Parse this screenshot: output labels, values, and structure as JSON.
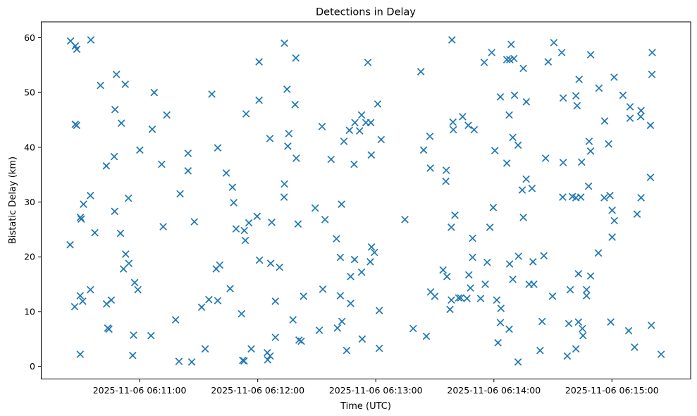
{
  "figure": {
    "background": "#ffffff"
  },
  "chart_data": {
    "type": "scatter",
    "title": "Detections in Delay",
    "xlabel": "Time (UTC)",
    "ylabel": "Bistatic Delay (km)",
    "marker": "x",
    "marker_color": "#1f77b4",
    "axis_color": "#000000",
    "grid": false,
    "legend": "none",
    "x_unit": "seconds after 2025-11-06 06:10:00 UTC",
    "xlim": [
      10,
      340
    ],
    "ylim": [
      -2.3,
      62.9
    ],
    "x_ticks": [
      {
        "sec": 60,
        "label": "2025-11-06 06:11:00"
      },
      {
        "sec": 120,
        "label": "2025-11-06 06:12:00"
      },
      {
        "sec": 180,
        "label": "2025-11-06 06:13:00"
      },
      {
        "sec": 240,
        "label": "2025-11-06 06:14:00"
      },
      {
        "sec": 300,
        "label": "2025-11-06 06:15:00"
      }
    ],
    "y_ticks": [
      0,
      10,
      20,
      30,
      40,
      50,
      60
    ],
    "points": [
      [
        24.9,
        59.4
      ],
      [
        27.3,
        58.5
      ],
      [
        28.1,
        57.9
      ],
      [
        35.2,
        59.6
      ],
      [
        48.2,
        53.3
      ],
      [
        40.1,
        51.3
      ],
      [
        52.7,
        51.5
      ],
      [
        67.4,
        50.0
      ],
      [
        96.7,
        49.7
      ],
      [
        47.5,
        46.9
      ],
      [
        73.8,
        45.9
      ],
      [
        114.1,
        46.1
      ],
      [
        27.3,
        44.2
      ],
      [
        28.0,
        44.0
      ],
      [
        50.7,
        44.4
      ],
      [
        66.4,
        43.3
      ],
      [
        60.1,
        39.5
      ],
      [
        99.7,
        39.9
      ],
      [
        47.1,
        38.3
      ],
      [
        84.6,
        38.9
      ],
      [
        43.1,
        36.6
      ],
      [
        71.2,
        36.9
      ],
      [
        84.6,
        35.7
      ],
      [
        104.0,
        35.3
      ],
      [
        107.2,
        32.7
      ],
      [
        35.0,
        31.2
      ],
      [
        80.6,
        31.5
      ],
      [
        133.6,
        59.0
      ],
      [
        139.4,
        56.3
      ],
      [
        120.7,
        55.6
      ],
      [
        176.0,
        55.5
      ],
      [
        202.9,
        53.8
      ],
      [
        218.7,
        59.6
      ],
      [
        134.9,
        50.6
      ],
      [
        120.7,
        48.6
      ],
      [
        139.0,
        47.8
      ],
      [
        181.0,
        47.9
      ],
      [
        172.8,
        45.9
      ],
      [
        169.4,
        44.5
      ],
      [
        175.0,
        44.5
      ],
      [
        177.5,
        44.5
      ],
      [
        166.6,
        43.1
      ],
      [
        171.8,
        43.0
      ],
      [
        152.7,
        43.8
      ],
      [
        182.7,
        41.4
      ],
      [
        163.8,
        41.1
      ],
      [
        126.2,
        41.6
      ],
      [
        135.8,
        42.5
      ],
      [
        135.3,
        40.2
      ],
      [
        207.5,
        42.0
      ],
      [
        204.3,
        39.5
      ],
      [
        219.2,
        44.6
      ],
      [
        224.1,
        45.6
      ],
      [
        227.0,
        44.0
      ],
      [
        219.4,
        43.2
      ],
      [
        139.6,
        38.0
      ],
      [
        157.3,
        37.8
      ],
      [
        169.0,
        36.9
      ],
      [
        177.7,
        38.6
      ],
      [
        207.7,
        36.2
      ],
      [
        215.8,
        35.8
      ],
      [
        215.6,
        33.8
      ],
      [
        133.6,
        33.3
      ],
      [
        133.4,
        30.9
      ],
      [
        248.8,
        58.8
      ],
      [
        270.5,
        59.1
      ],
      [
        238.9,
        57.3
      ],
      [
        235.1,
        55.5
      ],
      [
        246.6,
        56.0
      ],
      [
        248.1,
        56.0
      ],
      [
        250.2,
        56.2
      ],
      [
        255.0,
        54.4
      ],
      [
        267.6,
        55.6
      ],
      [
        274.5,
        57.3
      ],
      [
        289.2,
        56.9
      ],
      [
        320.5,
        57.3
      ],
      [
        320.3,
        53.3
      ],
      [
        283.3,
        52.4
      ],
      [
        301.1,
        52.8
      ],
      [
        293.4,
        50.8
      ],
      [
        243.3,
        49.2
      ],
      [
        250.5,
        49.5
      ],
      [
        256.5,
        48.3
      ],
      [
        275.2,
        49.0
      ],
      [
        281.7,
        49.4
      ],
      [
        305.6,
        49.5
      ],
      [
        282.3,
        47.6
      ],
      [
        247.8,
        45.9
      ],
      [
        296.3,
        44.8
      ],
      [
        309.2,
        47.4
      ],
      [
        314.8,
        46.7
      ],
      [
        309.2,
        45.3
      ],
      [
        314.6,
        45.6
      ],
      [
        319.6,
        44.0
      ],
      [
        230.0,
        43.2
      ],
      [
        249.6,
        41.8
      ],
      [
        252.3,
        40.4
      ],
      [
        240.5,
        39.4
      ],
      [
        288.4,
        41.1
      ],
      [
        298.3,
        40.6
      ],
      [
        289.2,
        39.3
      ],
      [
        246.6,
        37.1
      ],
      [
        266.3,
        38.0
      ],
      [
        275.2,
        37.2
      ],
      [
        284.6,
        37.3
      ],
      [
        319.6,
        34.5
      ],
      [
        256.4,
        34.2
      ],
      [
        254.4,
        32.2
      ],
      [
        259.4,
        32.5
      ],
      [
        288.1,
        32.9
      ],
      [
        275.0,
        30.9
      ],
      [
        279.9,
        31.0
      ],
      [
        281.7,
        30.8
      ],
      [
        284.2,
        30.9
      ],
      [
        296.1,
        30.8
      ],
      [
        299.0,
        31.2
      ],
      [
        314.8,
        30.8
      ],
      [
        31.5,
        29.6
      ],
      [
        54.3,
        30.7
      ],
      [
        47.3,
        28.3
      ],
      [
        29.9,
        27.2
      ],
      [
        30.3,
        26.9
      ],
      [
        107.8,
        29.9
      ],
      [
        87.8,
        26.4
      ],
      [
        72.0,
        25.5
      ],
      [
        119.7,
        27.4
      ],
      [
        115.5,
        26.2
      ],
      [
        109.0,
        25.1
      ],
      [
        113.2,
        24.8
      ],
      [
        113.7,
        23.0
      ],
      [
        24.7,
        22.2
      ],
      [
        37.2,
        24.4
      ],
      [
        50.3,
        24.3
      ],
      [
        52.9,
        20.5
      ],
      [
        54.5,
        18.8
      ],
      [
        51.8,
        17.8
      ],
      [
        98.9,
        17.8
      ],
      [
        100.7,
        18.5
      ],
      [
        57.5,
        15.3
      ],
      [
        59.1,
        14.0
      ],
      [
        35.0,
        14.0
      ],
      [
        29.8,
        12.9
      ],
      [
        31.1,
        11.9
      ],
      [
        27.0,
        10.9
      ],
      [
        43.2,
        11.4
      ],
      [
        45.6,
        12.1
      ],
      [
        106.0,
        14.2
      ],
      [
        95.2,
        12.2
      ],
      [
        99.7,
        12.0
      ],
      [
        91.5,
        10.8
      ],
      [
        111.8,
        9.6
      ],
      [
        78.3,
        8.5
      ],
      [
        43.8,
        7.0
      ],
      [
        44.4,
        6.8
      ],
      [
        56.9,
        5.7
      ],
      [
        65.8,
        5.6
      ],
      [
        29.8,
        2.2
      ],
      [
        56.5,
        2.0
      ],
      [
        80.0,
        0.9
      ],
      [
        86.5,
        0.8
      ],
      [
        93.3,
        3.2
      ],
      [
        116.7,
        3.2
      ],
      [
        112.4,
        1.1
      ],
      [
        113.1,
        1.0
      ],
      [
        162.6,
        29.6
      ],
      [
        149.2,
        28.9
      ],
      [
        127.1,
        26.3
      ],
      [
        140.5,
        26.0
      ],
      [
        154.2,
        26.8
      ],
      [
        194.8,
        26.8
      ],
      [
        220.2,
        27.6
      ],
      [
        218.4,
        25.4
      ],
      [
        160.0,
        23.3
      ],
      [
        177.8,
        21.8
      ],
      [
        179.3,
        20.8
      ],
      [
        162.0,
        19.9
      ],
      [
        169.2,
        19.5
      ],
      [
        177.2,
        19.1
      ],
      [
        120.9,
        19.4
      ],
      [
        126.6,
        18.8
      ],
      [
        131.1,
        18.1
      ],
      [
        172.8,
        17.2
      ],
      [
        167.2,
        16.4
      ],
      [
        214.2,
        17.6
      ],
      [
        216.2,
        16.4
      ],
      [
        227.3,
        16.7
      ],
      [
        229.2,
        23.4
      ],
      [
        229.2,
        19.9
      ],
      [
        228.1,
        14.3
      ],
      [
        207.9,
        13.6
      ],
      [
        210.0,
        12.8
      ],
      [
        218.4,
        12.1
      ],
      [
        222.1,
        12.5
      ],
      [
        223.2,
        12.5
      ],
      [
        226.3,
        12.4
      ],
      [
        217.7,
        10.4
      ],
      [
        153.1,
        14.1
      ],
      [
        143.3,
        12.8
      ],
      [
        162.0,
        12.9
      ],
      [
        167.2,
        11.5
      ],
      [
        129.0,
        11.9
      ],
      [
        181.8,
        10.2
      ],
      [
        137.9,
        8.5
      ],
      [
        162.8,
        8.2
      ],
      [
        151.3,
        6.6
      ],
      [
        160.5,
        7.0
      ],
      [
        129.0,
        5.3
      ],
      [
        141.0,
        4.8
      ],
      [
        142.1,
        4.6
      ],
      [
        173.1,
        5.0
      ],
      [
        181.8,
        3.3
      ],
      [
        165.2,
        2.9
      ],
      [
        199.0,
        6.9
      ],
      [
        205.7,
        5.5
      ],
      [
        124.9,
        2.5
      ],
      [
        126.3,
        1.9
      ],
      [
        125.1,
        1.2
      ],
      [
        239.7,
        29.0
      ],
      [
        255.0,
        27.2
      ],
      [
        238.0,
        25.4
      ],
      [
        300.1,
        28.5
      ],
      [
        301.2,
        26.6
      ],
      [
        312.8,
        27.8
      ],
      [
        300.1,
        23.6
      ],
      [
        293.1,
        20.7
      ],
      [
        236.6,
        19.0
      ],
      [
        252.5,
        20.1
      ],
      [
        248.0,
        18.7
      ],
      [
        259.9,
        19.1
      ],
      [
        265.4,
        20.2
      ],
      [
        283.0,
        16.9
      ],
      [
        289.2,
        16.5
      ],
      [
        249.6,
        15.9
      ],
      [
        235.6,
        15.0
      ],
      [
        257.9,
        15.0
      ],
      [
        260.3,
        15.0
      ],
      [
        278.8,
        14.0
      ],
      [
        287.1,
        14.0
      ],
      [
        287.1,
        12.9
      ],
      [
        233.3,
        12.4
      ],
      [
        241.5,
        12.1
      ],
      [
        269.8,
        12.8
      ],
      [
        243.6,
        10.6
      ],
      [
        243.3,
        8.0
      ],
      [
        247.8,
        6.8
      ],
      [
        264.5,
        8.2
      ],
      [
        278.1,
        7.8
      ],
      [
        283.0,
        8.1
      ],
      [
        285.0,
        6.9
      ],
      [
        285.3,
        5.6
      ],
      [
        299.4,
        8.1
      ],
      [
        308.5,
        6.5
      ],
      [
        320.0,
        7.5
      ],
      [
        242.1,
        4.3
      ],
      [
        263.5,
        2.9
      ],
      [
        281.7,
        3.2
      ],
      [
        277.3,
        1.9
      ],
      [
        311.5,
        3.5
      ],
      [
        325.0,
        2.2
      ],
      [
        252.3,
        0.8
      ]
    ]
  }
}
